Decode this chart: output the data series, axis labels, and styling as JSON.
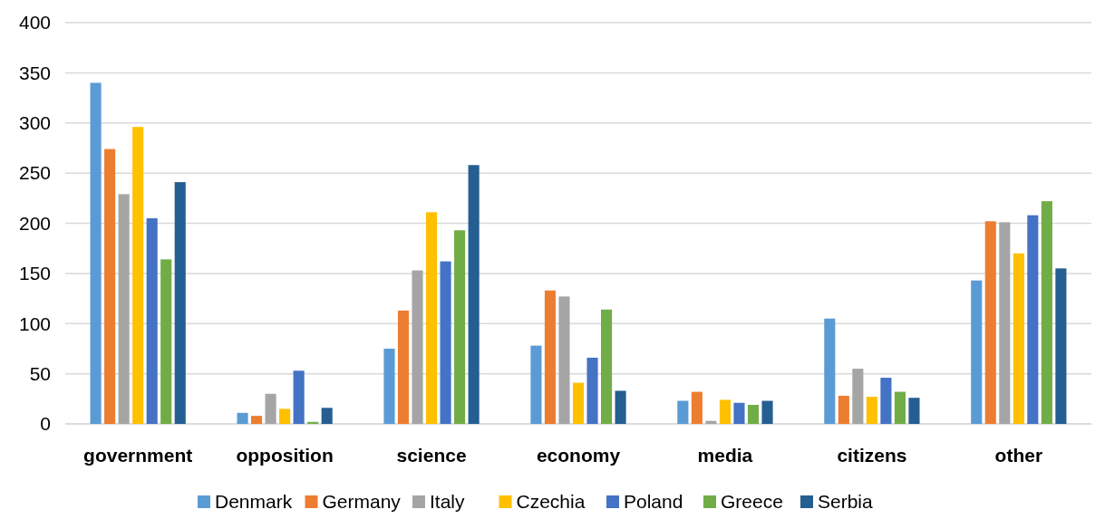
{
  "chart_data": {
    "type": "bar",
    "categories": [
      "government",
      "opposition",
      "science",
      "economy",
      "media",
      "citizens",
      "other"
    ],
    "series": [
      {
        "name": "Denmark",
        "color": "#5b9bd5",
        "values": [
          340,
          11,
          75,
          78,
          23,
          105,
          143
        ]
      },
      {
        "name": "Germany",
        "color": "#ed7d31",
        "values": [
          274,
          8,
          113,
          133,
          32,
          28,
          202
        ]
      },
      {
        "name": "Italy",
        "color": "#a5a5a5",
        "values": [
          229,
          30,
          153,
          127,
          3,
          55,
          201
        ]
      },
      {
        "name": "Czechia",
        "color": "#ffc000",
        "values": [
          296,
          15,
          211,
          41,
          24,
          27,
          170
        ]
      },
      {
        "name": "Poland",
        "color": "#4472c4",
        "values": [
          205,
          53,
          162,
          66,
          21,
          46,
          208
        ]
      },
      {
        "name": "Greece",
        "color": "#70ad47",
        "values": [
          164,
          2,
          193,
          114,
          19,
          32,
          222
        ]
      },
      {
        "name": "Serbia",
        "color": "#255e91",
        "values": [
          241,
          16,
          258,
          33,
          23,
          26,
          155
        ]
      }
    ],
    "ylim": [
      0,
      400
    ],
    "yticks": [
      0,
      50,
      100,
      150,
      200,
      250,
      300,
      350,
      400
    ],
    "grid": "y",
    "legend": "bottom"
  }
}
